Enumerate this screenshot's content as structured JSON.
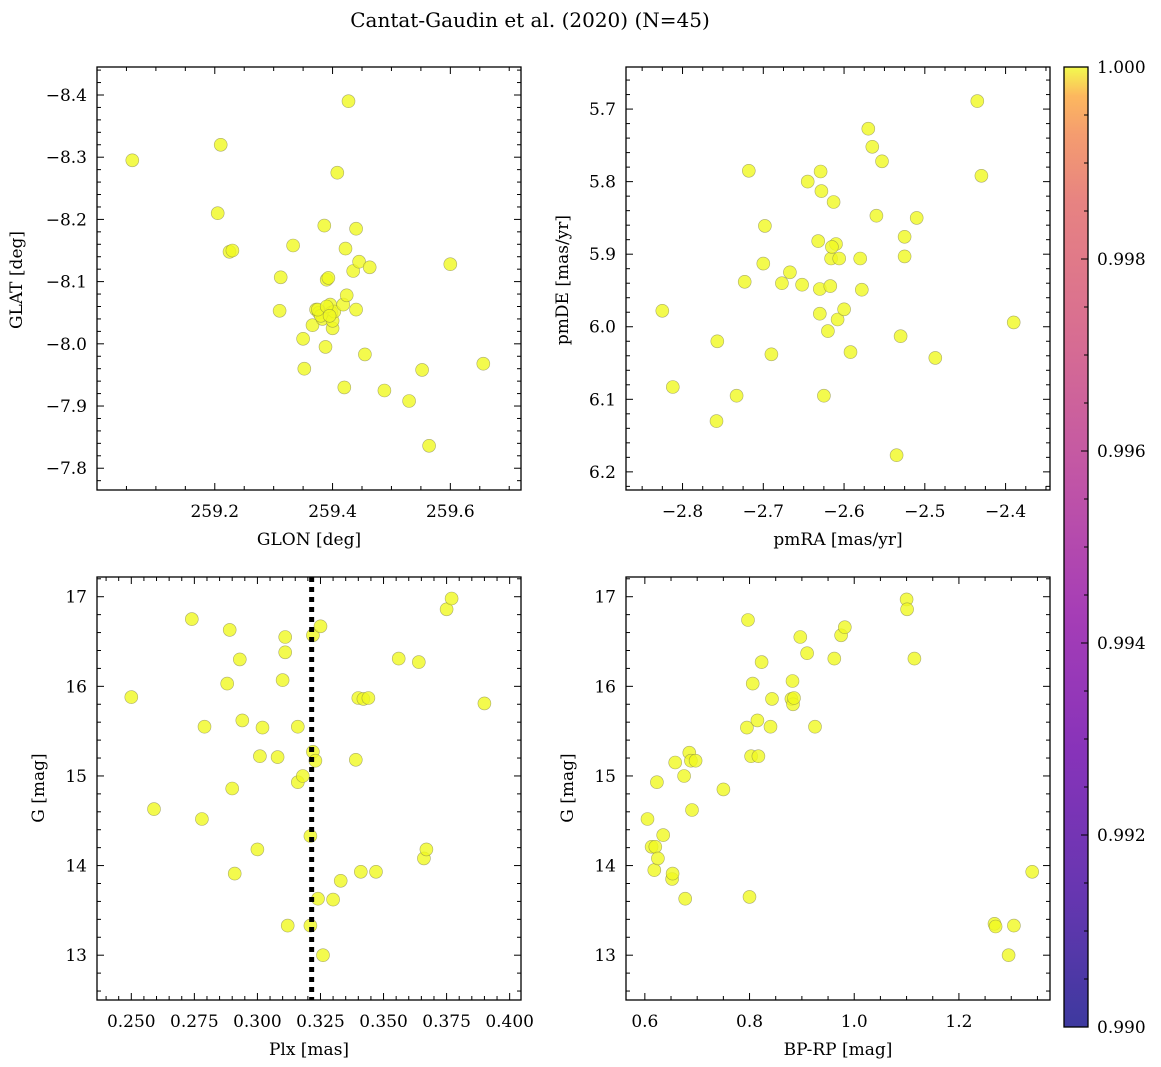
{
  "title": "Cantat-Gaudin et al. (2020) (N=45)",
  "colors": {
    "point": "#f0f921",
    "point_edge": "#7a7a4a",
    "vline": "#000000"
  },
  "colorbar": {
    "min": 0.99,
    "max": 1.0,
    "ticks": [
      0.99,
      0.992,
      0.994,
      0.996,
      0.998,
      1.0
    ],
    "tick_labels": [
      "0.990",
      "0.992",
      "0.994",
      "0.996",
      "0.998",
      "1.000"
    ],
    "colormap": "plasma"
  },
  "chart_data": [
    {
      "type": "scatter",
      "xlabel": "GLON [deg]",
      "ylabel": "GLAT [deg]",
      "xlim": [
        259.0,
        259.72
      ],
      "ylim": [
        -8.445,
        -7.765
      ],
      "xticks": [
        259.2,
        259.4,
        259.6
      ],
      "xtick_labels": [
        "259.2",
        "259.4",
        "259.6"
      ],
      "yticks": [
        -7.8,
        -7.9,
        -8.0,
        -8.1,
        -8.2,
        -8.3,
        -8.4
      ],
      "ytick_labels": [
        "−7.8",
        "−7.9",
        "−8.0",
        "−8.1",
        "−8.2",
        "−8.3",
        "−8.4"
      ],
      "x": [
        259.06,
        259.205,
        259.21,
        259.225,
        259.23,
        259.31,
        259.312,
        259.333,
        259.35,
        259.352,
        259.366,
        259.372,
        259.377,
        259.383,
        259.386,
        259.388,
        259.39,
        259.393,
        259.396,
        259.398,
        259.4,
        259.4,
        259.403,
        259.408,
        259.418,
        259.42,
        259.422,
        259.424,
        259.427,
        259.435,
        259.44,
        259.44,
        259.445,
        259.455,
        259.463,
        259.488,
        259.53,
        259.552,
        259.564,
        259.6,
        259.656,
        259.38,
        259.375,
        259.39,
        259.395
      ],
      "y": [
        -8.295,
        -8.21,
        -8.32,
        -8.148,
        -8.15,
        -8.053,
        -8.107,
        -8.158,
        -8.008,
        -7.96,
        -8.03,
        -8.055,
        -8.05,
        -8.04,
        -8.19,
        -7.995,
        -8.103,
        -8.106,
        -8.063,
        -8.05,
        -8.025,
        -8.037,
        -8.052,
        -8.275,
        -8.063,
        -7.93,
        -8.153,
        -8.078,
        -8.39,
        -8.117,
        -8.055,
        -8.185,
        -8.132,
        -7.983,
        -8.123,
        -7.925,
        -7.908,
        -7.958,
        -7.836,
        -8.128,
        -7.968,
        -8.045,
        -8.055,
        -8.06,
        -8.045
      ]
    },
    {
      "type": "scatter",
      "xlabel": "pmRA [mas/yr]",
      "ylabel": "pmDE [mas/yr]",
      "xlim": [
        -2.87,
        -2.345
      ],
      "ylim": [
        5.642,
        6.225
      ],
      "xticks": [
        -2.8,
        -2.7,
        -2.6,
        -2.5,
        -2.4
      ],
      "xtick_labels": [
        "−2.8",
        "−2.7",
        "−2.6",
        "−2.5",
        "−2.4"
      ],
      "yticks": [
        5.7,
        5.8,
        5.9,
        6.0,
        6.1,
        6.2
      ],
      "ytick_labels": [
        "5.7",
        "5.8",
        "5.9",
        "6.0",
        "6.1",
        "6.2"
      ],
      "x": [
        -2.825,
        -2.812,
        -2.758,
        -2.757,
        -2.733,
        -2.723,
        -2.718,
        -2.7,
        -2.698,
        -2.69,
        -2.677,
        -2.667,
        -2.652,
        -2.645,
        -2.632,
        -2.63,
        -2.63,
        -2.629,
        -2.628,
        -2.625,
        -2.62,
        -2.617,
        -2.616,
        -2.613,
        -2.61,
        -2.608,
        -2.606,
        -2.6,
        -2.592,
        -2.58,
        -2.578,
        -2.57,
        -2.565,
        -2.56,
        -2.553,
        -2.535,
        -2.53,
        -2.525,
        -2.525,
        -2.51,
        -2.487,
        -2.435,
        -2.43,
        -2.39,
        -2.615
      ],
      "y": [
        5.978,
        6.083,
        6.13,
        6.02,
        6.095,
        5.938,
        5.785,
        5.913,
        5.861,
        6.038,
        5.94,
        5.925,
        5.942,
        5.8,
        5.882,
        5.948,
        5.982,
        5.786,
        5.813,
        6.095,
        6.006,
        5.944,
        5.906,
        5.828,
        5.886,
        5.99,
        5.906,
        5.976,
        6.035,
        5.906,
        5.949,
        5.727,
        5.752,
        5.847,
        5.772,
        6.177,
        6.013,
        5.876,
        5.903,
        5.85,
        6.043,
        5.689,
        5.792,
        5.994,
        5.89
      ]
    },
    {
      "type": "scatter",
      "xlabel": "Plx [mas]",
      "ylabel": "G [mag]",
      "xlim": [
        0.2364,
        0.4045
      ],
      "ylim": [
        17.22,
        12.5
      ],
      "xticks": [
        0.25,
        0.275,
        0.3,
        0.325,
        0.35,
        0.375,
        0.4
      ],
      "xtick_labels": [
        "0.250",
        "0.275",
        "0.300",
        "0.325",
        "0.350",
        "0.375",
        "0.400"
      ],
      "yticks": [
        13,
        14,
        15,
        16,
        17
      ],
      "ytick_labels": [
        "13",
        "14",
        "15",
        "16",
        "17"
      ],
      "vline": 0.3215,
      "x": [
        0.25,
        0.259,
        0.274,
        0.278,
        0.279,
        0.288,
        0.289,
        0.29,
        0.291,
        0.293,
        0.294,
        0.3,
        0.301,
        0.302,
        0.308,
        0.31,
        0.311,
        0.311,
        0.312,
        0.316,
        0.316,
        0.318,
        0.321,
        0.321,
        0.322,
        0.322,
        0.323,
        0.324,
        0.325,
        0.326,
        0.33,
        0.333,
        0.339,
        0.34,
        0.341,
        0.342,
        0.344,
        0.347,
        0.356,
        0.364,
        0.366,
        0.367,
        0.375,
        0.377,
        0.39
      ],
      "y": [
        15.88,
        14.63,
        16.75,
        14.52,
        15.55,
        16.03,
        16.63,
        14.86,
        13.91,
        16.3,
        15.62,
        14.18,
        15.22,
        15.54,
        15.21,
        16.07,
        16.55,
        16.38,
        13.33,
        14.93,
        15.55,
        15.0,
        14.33,
        13.33,
        16.57,
        15.27,
        15.17,
        13.63,
        16.67,
        13.0,
        13.62,
        13.83,
        15.18,
        15.87,
        13.93,
        15.86,
        15.87,
        13.93,
        16.31,
        16.27,
        14.08,
        14.18,
        16.86,
        16.98,
        15.81
      ]
    },
    {
      "type": "scatter",
      "xlabel": "BP-RP [mag]",
      "ylabel": "G [mag]",
      "xlim": [
        0.564,
        1.374
      ],
      "ylim": [
        17.22,
        12.5
      ],
      "xticks": [
        0.6,
        0.8,
        1.0,
        1.2
      ],
      "xtick_labels": [
        "0.6",
        "0.8",
        "1.0",
        "1.2"
      ],
      "yticks": [
        13,
        14,
        15,
        16,
        17
      ],
      "ytick_labels": [
        "13",
        "14",
        "15",
        "16",
        "17"
      ],
      "x": [
        0.605,
        0.613,
        0.618,
        0.62,
        0.623,
        0.625,
        0.635,
        0.652,
        0.653,
        0.658,
        0.675,
        0.677,
        0.685,
        0.688,
        0.69,
        0.697,
        0.75,
        0.795,
        0.797,
        0.8,
        0.803,
        0.806,
        0.815,
        0.817,
        0.823,
        0.84,
        0.843,
        0.88,
        0.882,
        0.883,
        0.885,
        0.897,
        0.91,
        0.925,
        0.962,
        0.975,
        0.982,
        1.1,
        1.101,
        1.115,
        1.268,
        1.27,
        1.295,
        1.305,
        1.34
      ],
      "y": [
        14.52,
        14.21,
        13.95,
        14.21,
        14.93,
        14.08,
        14.34,
        13.85,
        13.91,
        15.15,
        15.0,
        13.63,
        15.26,
        15.17,
        14.62,
        15.17,
        14.85,
        15.54,
        16.74,
        13.65,
        15.22,
        16.03,
        15.62,
        15.22,
        16.27,
        15.55,
        15.86,
        15.86,
        16.06,
        15.8,
        15.87,
        16.55,
        16.37,
        15.55,
        16.31,
        16.57,
        16.66,
        16.97,
        16.86,
        16.31,
        13.35,
        13.32,
        13.0,
        13.33,
        13.93
      ]
    }
  ]
}
